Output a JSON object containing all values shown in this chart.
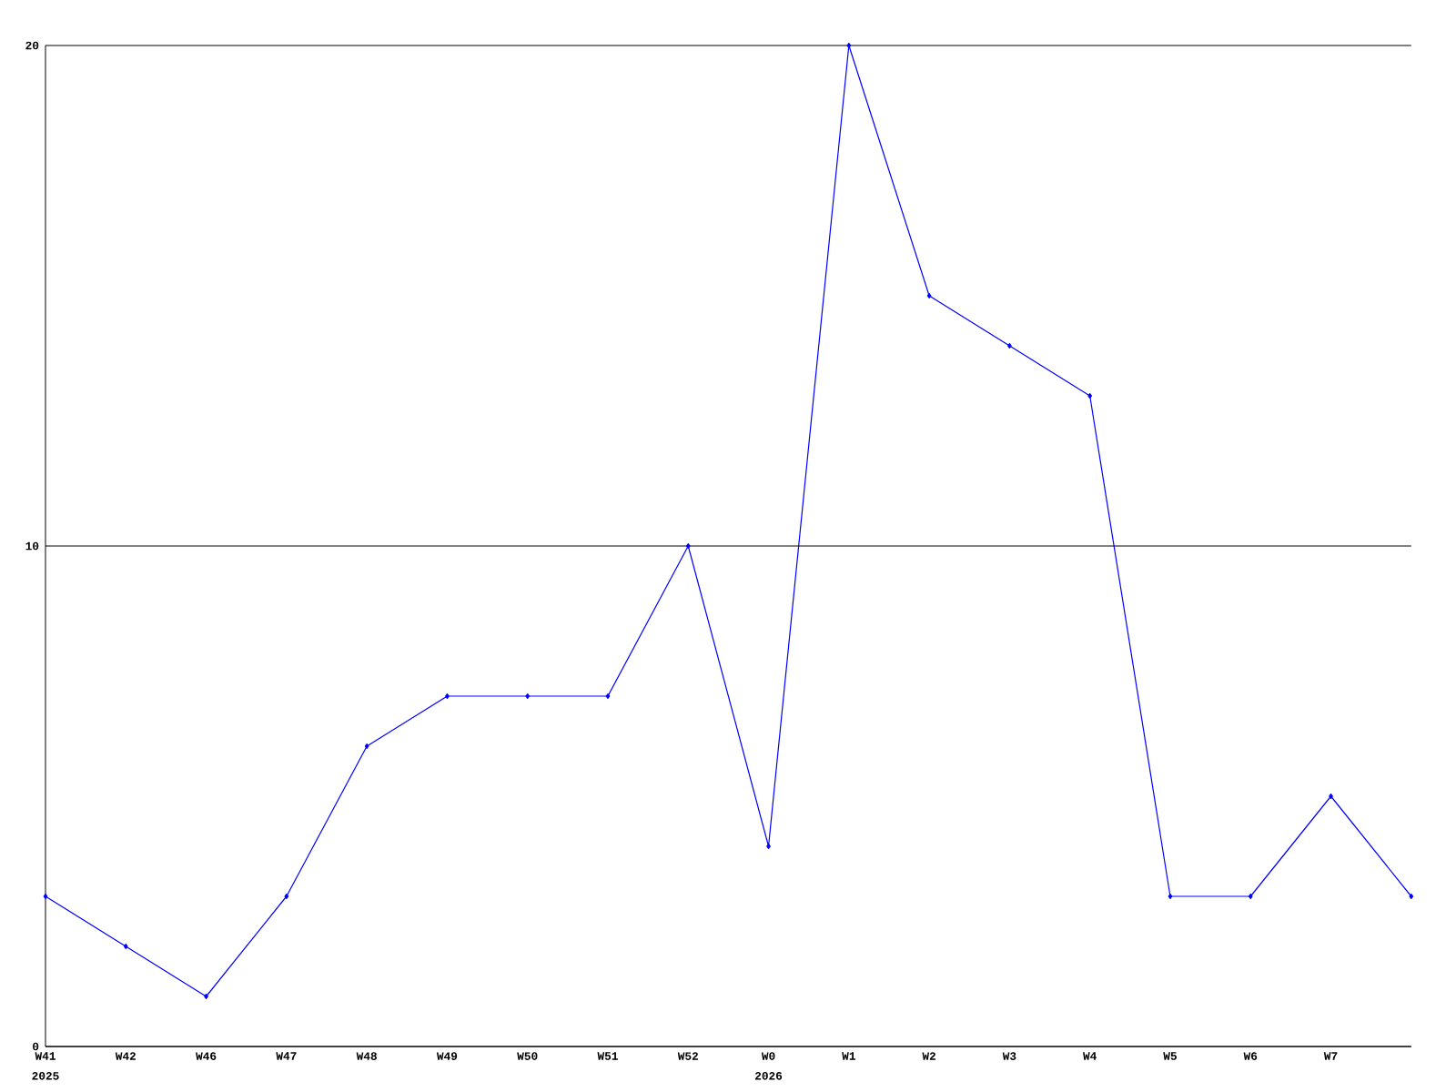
{
  "chart_data": {
    "type": "line",
    "color": "#0000ff",
    "marker": "diamond",
    "grid": "y",
    "categories": [
      "W41",
      "W42",
      "W46",
      "W47",
      "W48",
      "W49",
      "W50",
      "W51",
      "W52",
      "W0",
      "W1",
      "W2",
      "W3",
      "W4",
      "W5",
      "W6",
      "W7",
      null
    ],
    "values": [
      3,
      2,
      1,
      3,
      6,
      7,
      7,
      7,
      10,
      4,
      20,
      15,
      14,
      13,
      3,
      3,
      5,
      3
    ],
    "ylim": [
      0,
      20
    ],
    "yticks": [
      0,
      10,
      20
    ],
    "annotations": [
      "2025",
      "2026"
    ]
  }
}
